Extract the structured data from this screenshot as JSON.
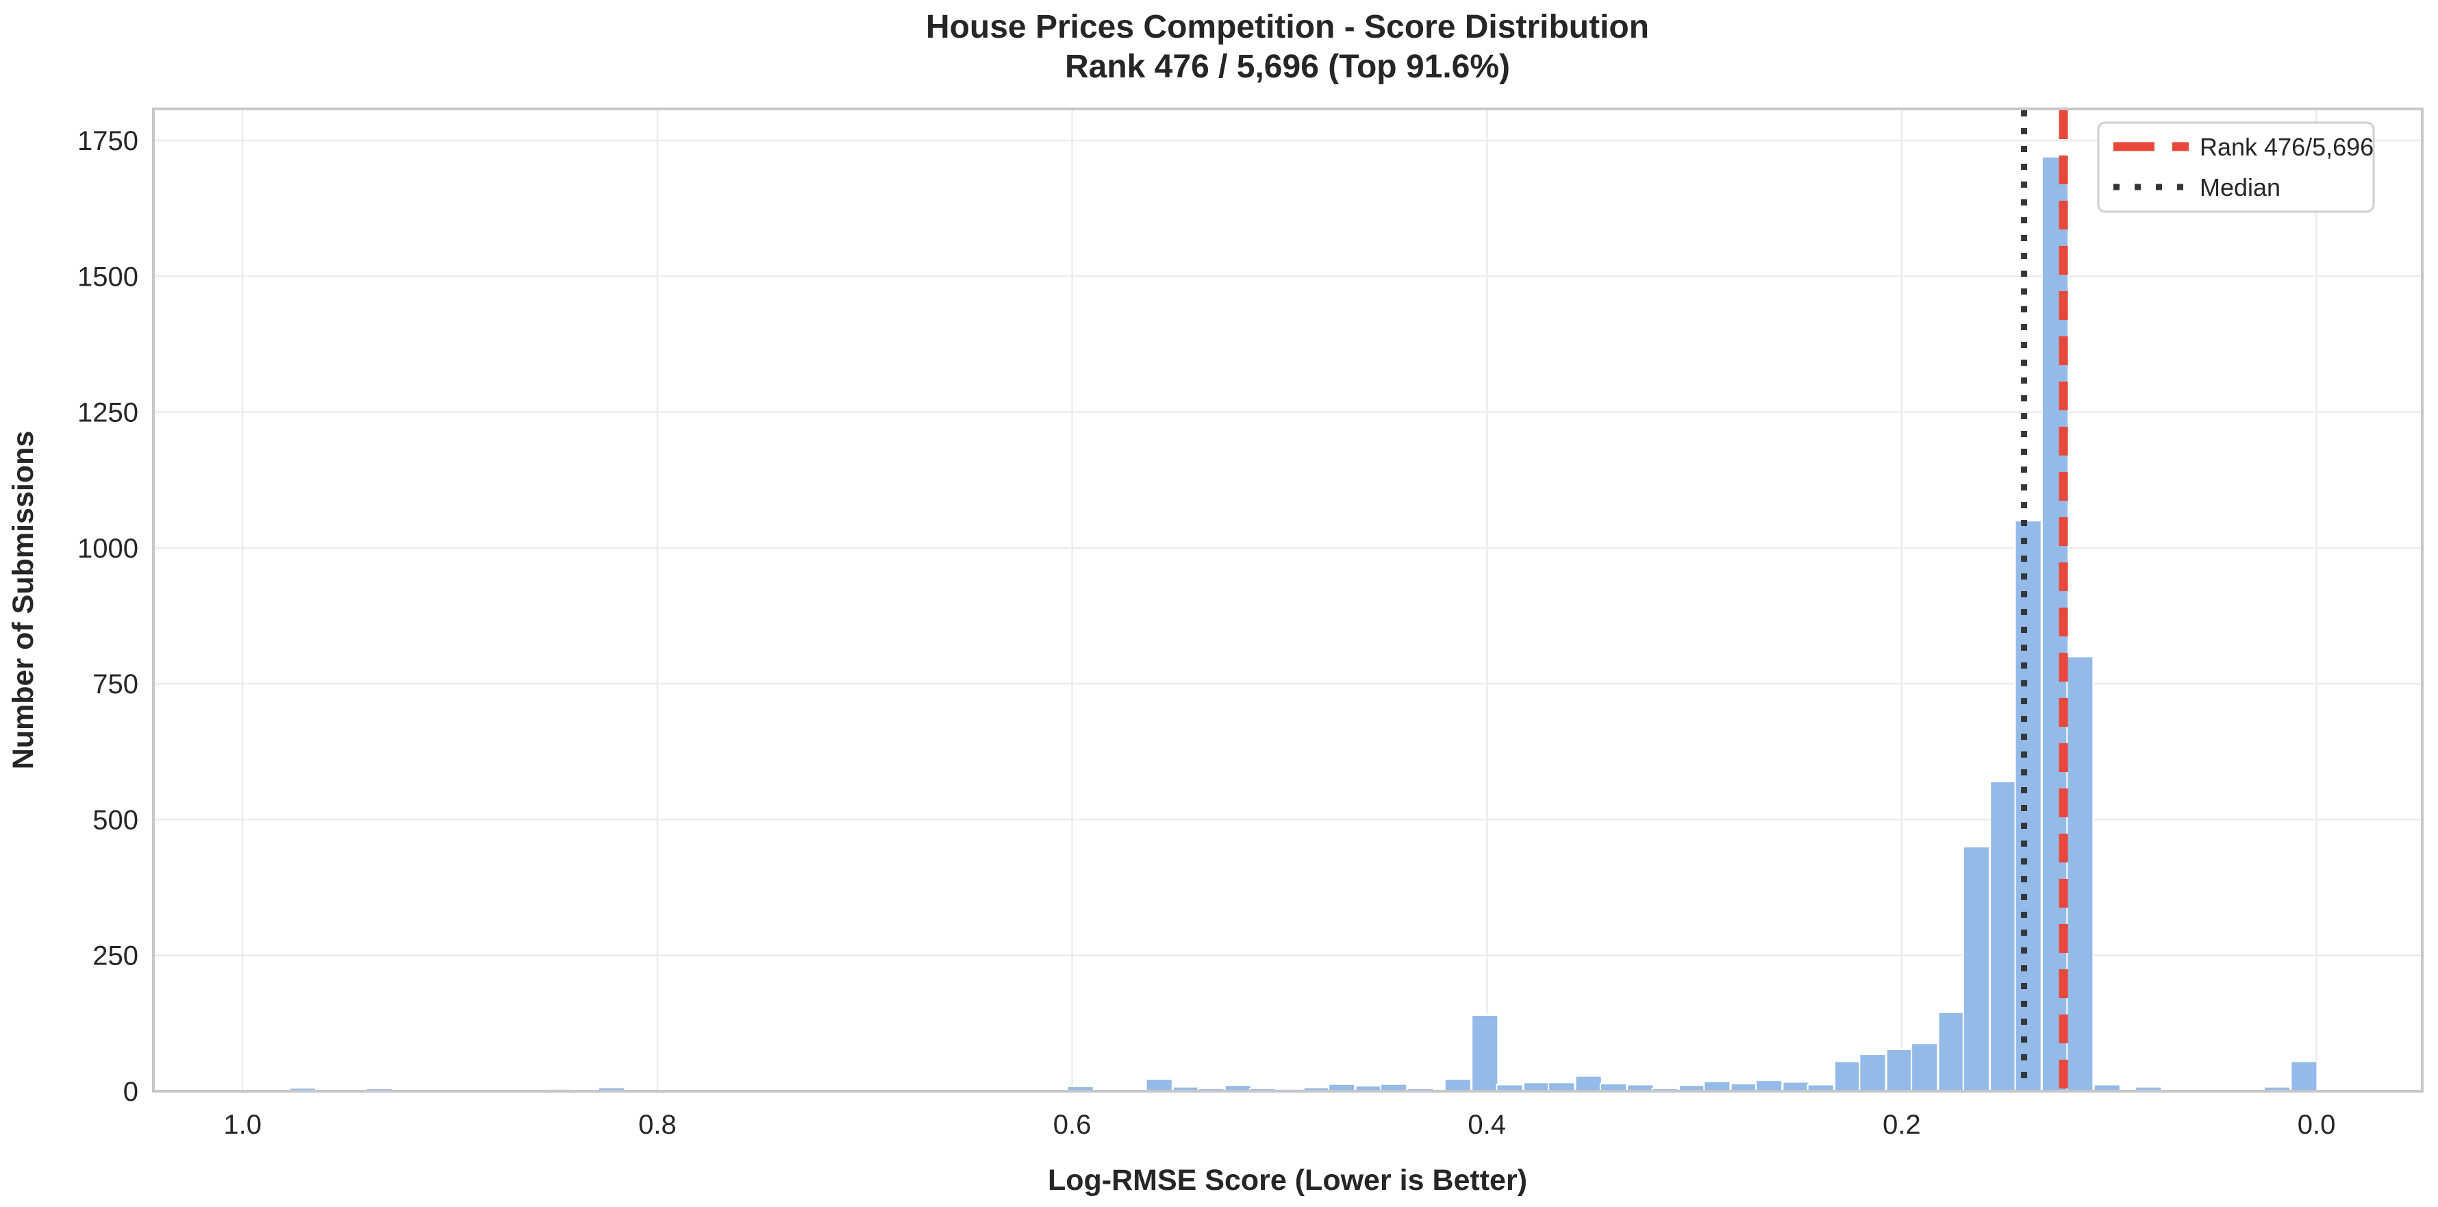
{
  "chart_data": {
    "type": "bar",
    "subtype": "histogram",
    "title": "House Prices Competition - Score Distribution",
    "subtitle": "Rank 476 / 5,696 (Top 91.6%)",
    "xlabel": "Log-RMSE Score (Lower is Better)",
    "ylabel": "Number of Submissions",
    "x_axis": {
      "ticks": [
        1.0,
        0.8,
        0.6,
        0.4,
        0.2,
        0.0
      ],
      "reversed": true,
      "lim": [
        1.043,
        -0.051
      ],
      "tick_decimals": 1
    },
    "y_axis": {
      "ticks": [
        0,
        250,
        500,
        750,
        1000,
        1250,
        1500,
        1750
      ],
      "lim": [
        0,
        1808
      ]
    },
    "grid": true,
    "legend_position": "upper right",
    "bin_width": 0.0126,
    "bins": [
      [
        0.986,
        2
      ],
      [
        0.971,
        6
      ],
      [
        0.948,
        2
      ],
      [
        0.934,
        5
      ],
      [
        0.898,
        2
      ],
      [
        0.847,
        4
      ],
      [
        0.822,
        7
      ],
      [
        0.746,
        2
      ],
      [
        0.721,
        2
      ],
      [
        0.658,
        3
      ],
      [
        0.621,
        2
      ],
      [
        0.596,
        9
      ],
      [
        0.558,
        22
      ],
      [
        0.545,
        8
      ],
      [
        0.533,
        5
      ],
      [
        0.52,
        11
      ],
      [
        0.508,
        5
      ],
      [
        0.495,
        4
      ],
      [
        0.482,
        7
      ],
      [
        0.47,
        13
      ],
      [
        0.457,
        10
      ],
      [
        0.445,
        13
      ],
      [
        0.432,
        5
      ],
      [
        0.414,
        22
      ],
      [
        0.401,
        140
      ],
      [
        0.389,
        12
      ],
      [
        0.376,
        16
      ],
      [
        0.364,
        16
      ],
      [
        0.351,
        28
      ],
      [
        0.339,
        14
      ],
      [
        0.326,
        12
      ],
      [
        0.314,
        5
      ],
      [
        0.301,
        11
      ],
      [
        0.289,
        18
      ],
      [
        0.276,
        14
      ],
      [
        0.264,
        20
      ],
      [
        0.251,
        17
      ],
      [
        0.239,
        12
      ],
      [
        0.226,
        55
      ],
      [
        0.214,
        68
      ],
      [
        0.201,
        77
      ],
      [
        0.189,
        88
      ],
      [
        0.176,
        145
      ],
      [
        0.164,
        450
      ],
      [
        0.151,
        570
      ],
      [
        0.139,
        1050
      ],
      [
        0.126,
        1720
      ],
      [
        0.114,
        800
      ],
      [
        0.101,
        12
      ],
      [
        0.081,
        8
      ],
      [
        0.056,
        3
      ],
      [
        0.031,
        2
      ],
      [
        0.019,
        8
      ],
      [
        0.006,
        55
      ]
    ],
    "vlines": [
      {
        "name": "rank-line",
        "x": 0.122,
        "label": "Rank 476/5,696",
        "color": "#e8473b",
        "style": "dashed"
      },
      {
        "name": "median-line",
        "x": 0.141,
        "label": "Median",
        "color": "#33363b",
        "style": "dotted"
      }
    ]
  },
  "colors": {
    "bar_fill": "#94bae8",
    "bar_edge": "#ffffff",
    "grid": "#ebebf0",
    "spine": "#c7c7cb",
    "text": "#262626",
    "background": "#ffffff",
    "legend_border": "#cfcfd4",
    "legend_fill": "#ffffff"
  }
}
